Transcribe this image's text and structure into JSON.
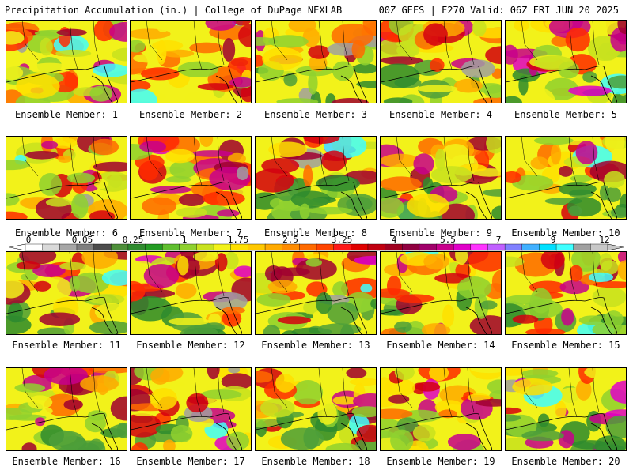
{
  "header": {
    "left": "Precipitation Accumulation (in.) | College of DuPage NEXLAB",
    "right": "00Z GEFS | F270 Valid: 06Z FRI JUN 20 2025"
  },
  "colorbar": {
    "labels": [
      "0",
      "0.05",
      "0.25",
      "1",
      "1.75",
      "2.5",
      "3.25",
      "4",
      "5.5",
      "7",
      "9",
      "12"
    ],
    "colors": [
      "#ffffff",
      "#d9d9d9",
      "#a6a6a6",
      "#7f7f7f",
      "#4c4c4c",
      "#4e8f3a",
      "#2e8b2e",
      "#239b23",
      "#5fbf2f",
      "#8fd12f",
      "#c8e21f",
      "#f2f21a",
      "#ffe000",
      "#ffc800",
      "#ffaa00",
      "#ff8c00",
      "#ff6a00",
      "#ff4400",
      "#ff1a1a",
      "#e00000",
      "#c00010",
      "#a00020",
      "#900040",
      "#a0006a",
      "#c8008c",
      "#e000c8",
      "#ff33ff",
      "#c060ff",
      "#8080ff",
      "#40b0ff",
      "#00e0ff",
      "#40ffff",
      "#a0a0a0",
      "#c8c8c8"
    ]
  },
  "members": [
    {
      "label": "Ensemble Member: 1"
    },
    {
      "label": "Ensemble Member: 2"
    },
    {
      "label": "Ensemble Member: 3"
    },
    {
      "label": "Ensemble Member: 4"
    },
    {
      "label": "Ensemble Member: 5"
    },
    {
      "label": "Ensemble Member: 6"
    },
    {
      "label": "Ensemble Member: 7"
    },
    {
      "label": "Ensemble Member: 8"
    },
    {
      "label": "Ensemble Member: 9"
    },
    {
      "label": "Ensemble Member: 10"
    },
    {
      "label": "Ensemble Member: 11"
    },
    {
      "label": "Ensemble Member: 12"
    },
    {
      "label": "Ensemble Member: 13"
    },
    {
      "label": "Ensemble Member: 14"
    },
    {
      "label": "Ensemble Member: 15"
    },
    {
      "label": "Ensemble Member: 16"
    },
    {
      "label": "Ensemble Member: 17"
    },
    {
      "label": "Ensemble Member: 18"
    },
    {
      "label": "Ensemble Member: 19"
    },
    {
      "label": "Ensemble Member: 20"
    }
  ]
}
